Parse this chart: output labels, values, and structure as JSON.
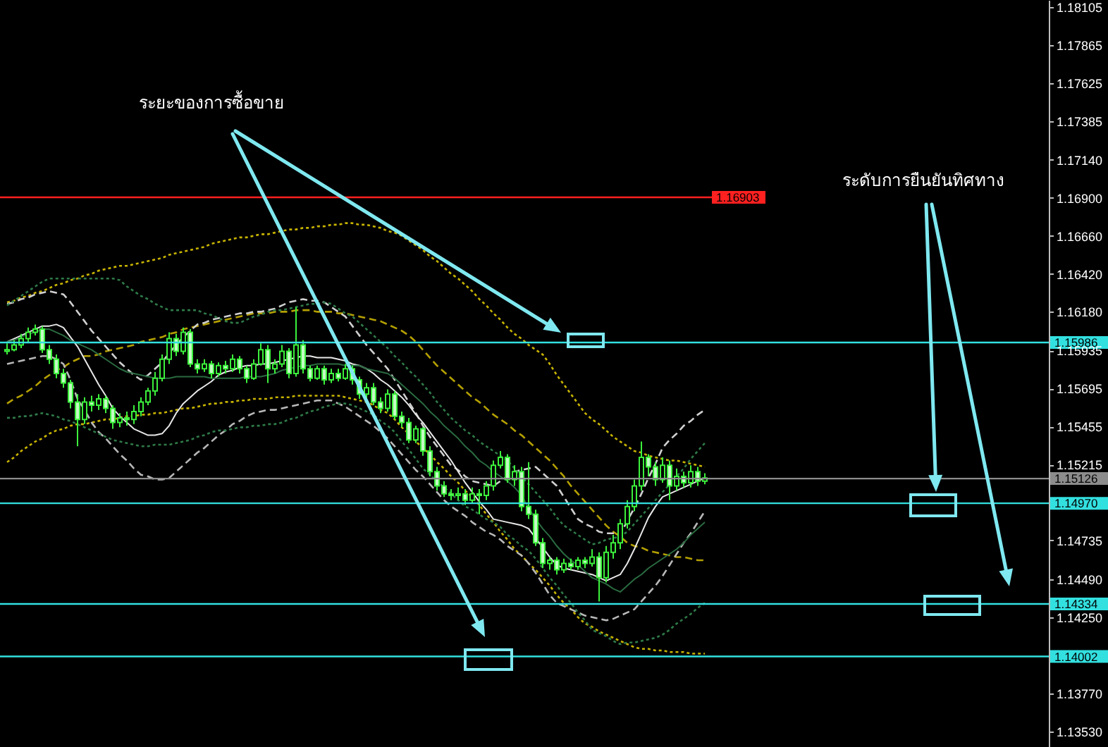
{
  "chart_data": {
    "type": "candlestick",
    "annotations": [
      "ระยะของการซื้อขาย",
      "ระดับการยืนยันทิศทาง"
    ],
    "categories": [
      null,
      null,
      null,
      null,
      null,
      null,
      null,
      null,
      null,
      null,
      null,
      null,
      null,
      null,
      null,
      null,
      null,
      null,
      null,
      null,
      null,
      null,
      null,
      null,
      null,
      null,
      null,
      null,
      null,
      null,
      null,
      null,
      null,
      null,
      null,
      null,
      null,
      null,
      null,
      null,
      null,
      null,
      null,
      null,
      null,
      null,
      null,
      null,
      null,
      null,
      null,
      null,
      null,
      null,
      null,
      null,
      null,
      null,
      null,
      null,
      null,
      null,
      null,
      null,
      null,
      null,
      null,
      null,
      null,
      null,
      null,
      null,
      null,
      null,
      null,
      null,
      null,
      null,
      null,
      null,
      null,
      null,
      null,
      null,
      null,
      null,
      null,
      null,
      null,
      null,
      null,
      null,
      null,
      null,
      null,
      null,
      null,
      null,
      null,
      null
    ],
    "ylim": [
      1.1343,
      1.1815
    ],
    "yticks": [
      1.18105,
      1.17865,
      1.17625,
      1.17385,
      {
        "value": 1.1714,
        "label": "1.17140"
      },
      {
        "value": 1.169,
        "label": "1.16900"
      },
      {
        "value": 1.1666,
        "label": "1.16660"
      },
      {
        "value": 1.1642,
        "label": "1.16420"
      },
      {
        "value": 1.1618,
        "label": "1.16180"
      },
      1.15935,
      1.15695,
      1.15455,
      1.15215,
      1.14735,
      {
        "value": 1.1449,
        "label": "1.14490"
      },
      {
        "value": 1.1425,
        "label": "1.14250"
      },
      {
        "value": 1.1377,
        "label": "1.13770"
      },
      {
        "value": 1.1353,
        "label": "1.13530"
      }
    ],
    "tick_labels": "y",
    "ref_lines": [
      {
        "axis": "y",
        "value": 1.16903,
        "label": "1.16903",
        "color": "#ff2020"
      },
      {
        "axis": "y",
        "value": 1.15986,
        "label": "1.15986",
        "color": "#33e0e0"
      },
      {
        "axis": "y",
        "value": 1.15126,
        "label": "1.15126",
        "color": "#8c8c8c"
      },
      {
        "axis": "y",
        "value": 1.1497,
        "label": "1.14970",
        "color": "#33e0e0"
      },
      {
        "axis": "y",
        "value": 1.14334,
        "label": "1.14334",
        "color": "#33e0e0"
      },
      {
        "axis": "y",
        "value": 1.14002,
        "label": "1.14002",
        "color": "#33e0e0"
      }
    ],
    "series": [
      {
        "type": "line",
        "color": "#c8b400",
        "line_style": "dotted",
        "values": [
          1.1624,
          1.1625,
          1.1627,
          1.1628,
          1.163,
          1.1631,
          1.1633,
          1.1635,
          1.1636,
          1.1638,
          1.1639,
          1.1641,
          1.1642,
          1.1644,
          1.1645,
          1.1646,
          1.1647,
          1.1647,
          1.1648,
          1.1649,
          1.165,
          1.1651,
          1.1652,
          1.1654,
          1.1655,
          1.1656,
          1.1657,
          1.1658,
          1.1659,
          1.1661,
          1.1662,
          1.1663,
          1.1664,
          1.1665,
          1.1665,
          1.1666,
          1.1667,
          1.1667,
          1.1668,
          1.1669,
          1.167,
          1.167,
          1.1671,
          1.1671,
          1.1672,
          1.1672,
          1.1673,
          1.1673,
          1.1674,
          1.1674,
          1.1673,
          1.1673,
          1.1672,
          1.1671,
          1.1669,
          1.1668,
          1.1666,
          1.1663,
          1.166,
          1.1657,
          1.1653,
          1.165,
          1.1646,
          1.1642,
          1.1639,
          1.1635,
          1.1631,
          1.1626,
          1.1622,
          1.1617,
          1.1613,
          1.1608,
          1.1604,
          1.1601,
          1.1597,
          1.1594,
          1.1591,
          1.1585,
          1.1578,
          1.1572,
          1.1566,
          1.156,
          1.1554,
          1.155,
          1.1547,
          1.1543,
          1.1539,
          1.1536,
          1.1533,
          1.153,
          1.1529,
          1.1527,
          1.1526,
          1.1525,
          1.1524,
          1.1524,
          1.1523,
          1.1522,
          1.1521,
          1.152
        ]
      },
      {
        "type": "line",
        "color": "#c8b400",
        "line_style": "dotted",
        "values": [
          1.1523,
          1.1526,
          1.153,
          1.1533,
          1.1536,
          1.1538,
          1.1541,
          1.1543,
          1.1544,
          1.1546,
          1.1547,
          1.1547,
          1.1548,
          1.1549,
          1.155,
          1.155,
          1.1551,
          1.1552,
          1.1552,
          1.1553,
          1.1553,
          1.1554,
          1.1554,
          1.1555,
          1.1556,
          1.1557,
          1.1557,
          1.1558,
          1.1559,
          1.156,
          1.156,
          1.1561,
          1.1561,
          1.1562,
          1.1562,
          1.1563,
          1.1563,
          1.1563,
          1.1564,
          1.1564,
          1.1564,
          1.1565,
          1.1565,
          1.1565,
          1.1565,
          1.1565,
          1.1565,
          1.1565,
          1.1564,
          1.1563,
          1.1562,
          1.1561,
          1.1559,
          1.1556,
          1.1554,
          1.155,
          1.1545,
          1.1541,
          1.1536,
          1.1532,
          1.1528,
          1.1523,
          1.1519,
          1.1514,
          1.151,
          1.1505,
          1.1501,
          1.1496,
          1.149,
          1.1485,
          1.1479,
          1.1474,
          1.1468,
          1.1464,
          1.1459,
          1.1455,
          1.145,
          1.1445,
          1.1439,
          1.1434,
          1.143,
          1.1425,
          1.1421,
          1.1419,
          1.1416,
          1.1414,
          1.1412,
          1.141,
          1.1408,
          1.1406,
          1.1405,
          1.1405,
          1.1404,
          1.1404,
          1.1403,
          1.1403,
          1.1403,
          1.1402,
          1.1402,
          1.1402
        ]
      },
      {
        "type": "line",
        "color": "#b4a000",
        "line_style": "dashed",
        "values": [
          1.156,
          1.1563,
          1.1565,
          1.1568,
          1.1571,
          1.1575,
          1.1578,
          1.1581,
          1.1583,
          1.1586,
          1.1588,
          1.159,
          1.159,
          1.1591,
          1.1593,
          1.1594,
          1.1595,
          1.1596,
          1.1597,
          1.1599,
          1.16,
          1.1601,
          1.1602,
          1.1604,
          1.1605,
          1.1607,
          1.1608,
          1.1609,
          1.161,
          1.1611,
          1.1612,
          1.1613,
          1.1614,
          1.1615,
          1.1616,
          1.1617,
          1.1617,
          1.1617,
          1.1618,
          1.1618,
          1.1618,
          1.1619,
          1.1619,
          1.1619,
          1.1618,
          1.1618,
          1.1618,
          1.1617,
          1.1617,
          1.1616,
          1.1615,
          1.1614,
          1.1613,
          1.1612,
          1.161,
          1.1608,
          1.1606,
          1.1603,
          1.1599,
          1.1594,
          1.1589,
          1.1584,
          1.158,
          1.1576,
          1.1572,
          1.1568,
          1.1564,
          1.1561,
          1.1557,
          1.1553,
          1.155,
          1.1547,
          1.1543,
          1.154,
          1.1536,
          1.1532,
          1.1528,
          1.1524,
          1.1519,
          1.1514,
          1.1508,
          1.1503,
          1.1498,
          1.1493,
          1.1488,
          1.1483,
          1.1479,
          1.1476,
          1.1472,
          1.147,
          1.1469,
          1.1467,
          1.1466,
          1.1465,
          1.1464,
          1.1463,
          1.1463,
          1.1462,
          1.1461,
          1.1461
        ]
      },
      {
        "type": "line",
        "color": "#d0d0d0",
        "line_style": "dashed",
        "values": [
          1.1623,
          1.1624,
          1.1626,
          1.1627,
          1.1629,
          1.163,
          1.1631,
          1.163,
          1.1629,
          1.1624,
          1.1618,
          1.1612,
          1.1606,
          1.1601,
          1.1596,
          1.1591,
          1.1586,
          1.1582,
          1.1578,
          1.1575,
          1.1578,
          1.1582,
          1.1586,
          1.1592,
          1.1597,
          1.1602,
          1.1606,
          1.161,
          1.1611,
          1.1613,
          1.1614,
          1.1615,
          1.1616,
          1.1617,
          1.1617,
          1.1618,
          1.1618,
          1.1619,
          1.162,
          1.1622,
          1.1624,
          1.1625,
          1.1626,
          1.1625,
          1.1625,
          1.1624,
          1.1621,
          1.1618,
          1.1615,
          1.1609,
          1.1603,
          1.1597,
          1.1592,
          1.1587,
          1.1582,
          1.1575,
          1.1568,
          1.1561,
          1.1554,
          1.1546,
          1.1539,
          1.1533,
          1.1527,
          1.1521,
          1.1518,
          1.1514,
          1.1511,
          1.151,
          1.1509,
          1.1508,
          1.1511,
          1.1514,
          1.1517,
          1.1518,
          1.1519,
          1.152,
          1.1516,
          1.1512,
          1.1508,
          1.1501,
          1.1494,
          1.1487,
          1.1484,
          1.1482,
          1.1479,
          1.1478,
          1.1478,
          1.1477,
          1.1486,
          1.1494,
          1.1503,
          1.1513,
          1.1522,
          1.1532,
          1.1537,
          1.1541,
          1.1546,
          1.1549,
          1.1553,
          1.1556
        ]
      },
      {
        "type": "line",
        "color": "#e8e8e8",
        "line_style": "solid",
        "values": [
          1.1599,
          1.1601,
          1.1603,
          1.1605,
          1.1607,
          1.1609,
          1.1609,
          1.161,
          1.1608,
          1.1602,
          1.1596,
          1.1588,
          1.158,
          1.1572,
          1.1565,
          1.1557,
          1.1552,
          1.1548,
          1.1544,
          1.1542,
          1.154,
          1.154,
          1.1541,
          1.1546,
          1.1554,
          1.156,
          1.1564,
          1.1568,
          1.1571,
          1.1574,
          1.1578,
          1.158,
          1.1581,
          1.1583,
          1.1584,
          1.1584,
          1.1585,
          1.1585,
          1.1586,
          1.1587,
          1.1588,
          1.1589,
          1.159,
          1.159,
          1.1589,
          1.1589,
          1.1589,
          1.1588,
          1.1587,
          1.1585,
          1.1584,
          1.1582,
          1.1579,
          1.1575,
          1.1572,
          1.1568,
          1.1564,
          1.1559,
          1.1553,
          1.1548,
          1.1542,
          1.1536,
          1.153,
          1.1524,
          1.1517,
          1.151,
          1.1504,
          1.1498,
          1.1493,
          1.1487,
          1.1486,
          1.1485,
          1.1484,
          1.1483,
          1.1481,
          1.1475,
          1.1469,
          1.1463,
          1.1458,
          1.1456,
          1.1455,
          1.1454,
          1.1453,
          1.1452,
          1.145,
          1.1448,
          1.145,
          1.1452,
          1.1459,
          1.1468,
          1.1478,
          1.1488,
          1.1495,
          1.1501,
          1.1503,
          1.1505,
          1.1507,
          1.1509,
          1.1511,
          1.1513
        ]
      },
      {
        "type": "line",
        "color": "#b8b8b8",
        "line_style": "dashed",
        "values": [
          1.1585,
          1.1586,
          1.1587,
          1.1588,
          1.1589,
          1.159,
          1.159,
          1.1588,
          1.1585,
          1.1575,
          1.1563,
          1.1556,
          1.1548,
          1.1542,
          1.1538,
          1.1533,
          1.1528,
          1.1524,
          1.1519,
          1.1515,
          1.1514,
          1.1512,
          1.1512,
          1.1513,
          1.1517,
          1.1521,
          1.1525,
          1.1529,
          1.1532,
          1.1536,
          1.154,
          1.1543,
          1.1547,
          1.1549,
          1.1552,
          1.1554,
          1.1555,
          1.1556,
          1.1556,
          1.1557,
          1.1558,
          1.1559,
          1.156,
          1.1561,
          1.1562,
          1.1562,
          1.1562,
          1.156,
          1.1558,
          1.1555,
          1.1552,
          1.1549,
          1.1546,
          1.1542,
          1.1538,
          1.1533,
          1.1528,
          1.1523,
          1.1518,
          1.1514,
          1.1509,
          1.1504,
          1.1499,
          1.1495,
          1.1492,
          1.1489,
          1.1485,
          1.1482,
          1.1479,
          1.1477,
          1.1474,
          1.147,
          1.1467,
          1.1464,
          1.1459,
          1.1453,
          1.1446,
          1.1439,
          1.1434,
          1.1432,
          1.143,
          1.1428,
          1.1426,
          1.1425,
          1.1424,
          1.1423,
          1.1424,
          1.1426,
          1.1428,
          1.143,
          1.1435,
          1.144,
          1.1445,
          1.1451,
          1.1458,
          1.1465,
          1.1472,
          1.1478,
          1.1485,
          1.1492
        ]
      },
      {
        "type": "line",
        "color": "#2f7a48",
        "line_style": "dotted",
        "values": [
          1.1622,
          1.1625,
          1.1628,
          1.1631,
          1.1634,
          1.1637,
          1.1639,
          1.1639,
          1.1639,
          1.1639,
          1.1639,
          1.1639,
          1.1639,
          1.1639,
          1.1639,
          1.1639,
          1.1638,
          1.1634,
          1.1631,
          1.1628,
          1.1626,
          1.1623,
          1.1621,
          1.1619,
          1.1619,
          1.1619,
          1.1619,
          1.1619,
          1.1617,
          1.1616,
          1.1614,
          1.1612,
          1.1611,
          1.1611,
          1.1613,
          1.1615,
          1.1616,
          1.1618,
          1.1619,
          1.1619,
          1.162,
          1.1621,
          1.1622,
          1.1623,
          1.1623,
          1.1624,
          1.1623,
          1.162,
          1.1617,
          1.1615,
          1.1611,
          1.1607,
          1.1603,
          1.1599,
          1.1595,
          1.159,
          1.1586,
          1.1581,
          1.1577,
          1.1572,
          1.1567,
          1.1561,
          1.1556,
          1.1551,
          1.1547,
          1.1543,
          1.154,
          1.1536,
          1.1533,
          1.153,
          1.1527,
          1.1524,
          1.1519,
          1.1514,
          1.1509,
          1.1504,
          1.1499,
          1.1494,
          1.1488,
          1.1483,
          1.148,
          1.1477,
          1.1474,
          1.1471,
          1.1472,
          1.1474,
          1.1475,
          1.1476,
          1.1479,
          1.1484,
          1.1489,
          1.1494,
          1.1499,
          1.1504,
          1.1509,
          1.1514,
          1.1519,
          1.1525,
          1.153,
          1.1535
        ]
      },
      {
        "type": "line",
        "color": "#2a6a40",
        "line_style": "solid",
        "values": [
          1.1599,
          1.16,
          1.1602,
          1.1604,
          1.1605,
          1.1607,
          1.1607,
          1.1605,
          1.1603,
          1.16,
          1.1598,
          1.1596,
          1.1594,
          1.1591,
          1.1588,
          1.1585,
          1.1582,
          1.158,
          1.1579,
          1.1578,
          1.1577,
          1.1576,
          1.1576,
          1.1576,
          1.1577,
          1.1577,
          1.1577,
          1.1577,
          1.1577,
          1.1576,
          1.1576,
          1.1576,
          1.1576,
          1.1576,
          1.1577,
          1.1577,
          1.1577,
          1.1578,
          1.1579,
          1.1581,
          1.1582,
          1.1583,
          1.1584,
          1.1584,
          1.1585,
          1.1585,
          1.1585,
          1.1585,
          1.1584,
          1.1584,
          1.1584,
          1.1582,
          1.1581,
          1.158,
          1.1579,
          1.1576,
          1.1572,
          1.1568,
          1.1564,
          1.156,
          1.1555,
          1.1551,
          1.1546,
          1.1542,
          1.1538,
          1.1533,
          1.1529,
          1.1524,
          1.1521,
          1.1517,
          1.1514,
          1.1511,
          1.1507,
          1.1502,
          1.1494,
          1.1487,
          1.1481,
          1.1476,
          1.147,
          1.1465,
          1.1461,
          1.1458,
          1.1454,
          1.145,
          1.1448,
          1.1446,
          1.1443,
          1.1441,
          1.1445,
          1.1449,
          1.1452,
          1.1456,
          1.1459,
          1.1462,
          1.1465,
          1.1468,
          1.1472,
          1.1477,
          1.1481,
          1.1485
        ]
      },
      {
        "type": "line",
        "color": "#2f7a48",
        "line_style": "dotted",
        "values": [
          1.1551,
          1.1551,
          1.1552,
          1.1552,
          1.1553,
          1.1554,
          1.1553,
          1.1552,
          1.155,
          1.1549,
          1.1547,
          1.1545,
          1.1543,
          1.1541,
          1.1539,
          1.1537,
          1.1536,
          1.1535,
          1.1534,
          1.1533,
          1.1533,
          1.1534,
          1.1534,
          1.1534,
          1.1535,
          1.1536,
          1.1537,
          1.1539,
          1.154,
          1.1542,
          1.1543,
          1.1543,
          1.1544,
          1.1545,
          1.1545,
          1.1546,
          1.1546,
          1.1547,
          1.1547,
          1.1548,
          1.155,
          1.1551,
          1.1553,
          1.1555,
          1.1556,
          1.1558,
          1.1559,
          1.156,
          1.156,
          1.1559,
          1.1557,
          1.1555,
          1.1553,
          1.1549,
          1.1546,
          1.1542,
          1.1536,
          1.1531,
          1.1525,
          1.1519,
          1.1515,
          1.1511,
          1.1507,
          1.1503,
          1.1499,
          1.1495,
          1.1493,
          1.149,
          1.1487,
          1.1485,
          1.1482,
          1.1477,
          1.1474,
          1.147,
          1.1467,
          1.1462,
          1.1456,
          1.145,
          1.1445,
          1.1439,
          1.1434,
          1.1428,
          1.1423,
          1.1417,
          1.1415,
          1.1413,
          1.141,
          1.1408,
          1.1409,
          1.1409,
          1.141,
          1.1411,
          1.1412,
          1.1414,
          1.1417,
          1.1421,
          1.1424,
          1.1427,
          1.1431,
          1.1434
        ]
      },
      {
        "type": "candlestick",
        "color": "#3cf03c",
        "ohlc": [
          [
            1.1593,
            1.1598,
            1.1591,
            1.1594
          ],
          [
            1.1594,
            1.16,
            1.1593,
            1.1597
          ],
          [
            1.1597,
            1.1604,
            1.1595,
            1.1601
          ],
          [
            1.1601,
            1.1608,
            1.1599,
            1.1605
          ],
          [
            1.1605,
            1.161,
            1.1603,
            1.1607
          ],
          [
            1.1607,
            1.1609,
            1.1592,
            1.1594
          ],
          [
            1.1594,
            1.1597,
            1.1585,
            1.1588
          ],
          [
            1.1588,
            1.1591,
            1.1576,
            1.1579
          ],
          [
            1.1579,
            1.1582,
            1.157,
            1.1573
          ],
          [
            1.1573,
            1.1575,
            1.1557,
            1.1561
          ],
          [
            1.1561,
            1.1566,
            1.1533,
            1.155
          ],
          [
            1.155,
            1.1564,
            1.1547,
            1.1561
          ],
          [
            1.1561,
            1.1565,
            1.1555,
            1.1559
          ],
          [
            1.1559,
            1.1566,
            1.1556,
            1.1563
          ],
          [
            1.1563,
            1.1565,
            1.1554,
            1.1557
          ],
          [
            1.1557,
            1.1559,
            1.1544,
            1.1548
          ],
          [
            1.1548,
            1.1554,
            1.1545,
            1.1551
          ],
          [
            1.1551,
            1.1555,
            1.1546,
            1.155
          ],
          [
            1.155,
            1.1559,
            1.1547,
            1.1555
          ],
          [
            1.1555,
            1.1564,
            1.1552,
            1.1561
          ],
          [
            1.1561,
            1.157,
            1.1559,
            1.1568
          ],
          [
            1.1568,
            1.158,
            1.1565,
            1.1576
          ],
          [
            1.1576,
            1.1591,
            1.1574,
            1.1588
          ],
          [
            1.1588,
            1.1605,
            1.1585,
            1.1601
          ],
          [
            1.1601,
            1.1604,
            1.159,
            1.1593
          ],
          [
            1.1593,
            1.1608,
            1.1591,
            1.1605
          ],
          [
            1.1605,
            1.1607,
            1.1583,
            1.1585
          ],
          [
            1.1585,
            1.1588,
            1.1579,
            1.1582
          ],
          [
            1.1582,
            1.1588,
            1.158,
            1.1585
          ],
          [
            1.1585,
            1.1587,
            1.1576,
            1.1579
          ],
          [
            1.1579,
            1.1586,
            1.1577,
            1.1584
          ],
          [
            1.1584,
            1.1587,
            1.1579,
            1.1582
          ],
          [
            1.1582,
            1.1591,
            1.158,
            1.1588
          ],
          [
            1.1588,
            1.159,
            1.1579,
            1.1582
          ],
          [
            1.1582,
            1.1584,
            1.1573,
            1.1576
          ],
          [
            1.1576,
            1.1588,
            1.1575,
            1.1585
          ],
          [
            1.1585,
            1.1598,
            1.1584,
            1.1594
          ],
          [
            1.1594,
            1.1597,
            1.1573,
            1.1582
          ],
          [
            1.1582,
            1.1588,
            1.1579,
            1.1585
          ],
          [
            1.1585,
            1.1597,
            1.1583,
            1.1593
          ],
          [
            1.1593,
            1.1595,
            1.1576,
            1.1579
          ],
          [
            1.1579,
            1.1621,
            1.1577,
            1.1597
          ],
          [
            1.1597,
            1.16,
            1.1579,
            1.1582
          ],
          [
            1.1582,
            1.1584,
            1.1574,
            1.1576
          ],
          [
            1.1576,
            1.1584,
            1.1575,
            1.1582
          ],
          [
            1.1582,
            1.1584,
            1.1572,
            1.1575
          ],
          [
            1.1575,
            1.1582,
            1.1573,
            1.1579
          ],
          [
            1.1579,
            1.1582,
            1.1574,
            1.1576
          ],
          [
            1.1576,
            1.1585,
            1.1575,
            1.1582
          ],
          [
            1.1582,
            1.1584,
            1.1572,
            1.1575
          ],
          [
            1.1575,
            1.1577,
            1.1563,
            1.1566
          ],
          [
            1.1566,
            1.1573,
            1.1563,
            1.157
          ],
          [
            1.157,
            1.1573,
            1.1559,
            1.1561
          ],
          [
            1.1561,
            1.1564,
            1.1554,
            1.1557
          ],
          [
            1.1557,
            1.1569,
            1.1555,
            1.1566
          ],
          [
            1.1566,
            1.1568,
            1.155,
            1.1552
          ],
          [
            1.1552,
            1.1555,
            1.1545,
            1.1548
          ],
          [
            1.1548,
            1.1551,
            1.1535,
            1.1537
          ],
          [
            1.1537,
            1.1546,
            1.1535,
            1.1544
          ],
          [
            1.1544,
            1.1545,
            1.1527,
            1.153
          ],
          [
            1.153,
            1.1533,
            1.1514,
            1.1517
          ],
          [
            1.1517,
            1.152,
            1.1505,
            1.1508
          ],
          [
            1.1508,
            1.1511,
            1.1501,
            1.1503
          ],
          [
            1.1503,
            1.1506,
            1.1499,
            1.1502
          ],
          [
            1.1502,
            1.1507,
            1.1499,
            1.1503
          ],
          [
            1.1503,
            1.1506,
            1.1496,
            1.1499
          ],
          [
            1.1499,
            1.1507,
            1.1497,
            1.1503
          ],
          [
            1.1503,
            1.1506,
            1.149,
            1.1502
          ],
          [
            1.1502,
            1.1511,
            1.1499,
            1.1508
          ],
          [
            1.1508,
            1.1524,
            1.1505,
            1.1521
          ],
          [
            1.1521,
            1.153,
            1.1519,
            1.1526
          ],
          [
            1.1526,
            1.1528,
            1.151,
            1.1512
          ],
          [
            1.1512,
            1.1521,
            1.1508,
            1.1517
          ],
          [
            1.1517,
            1.152,
            1.1492,
            1.1495
          ],
          [
            1.1495,
            1.1523,
            1.1487,
            1.149
          ],
          [
            1.149,
            1.1493,
            1.147,
            1.1472
          ],
          [
            1.1472,
            1.1475,
            1.1456,
            1.1459
          ],
          [
            1.1459,
            1.1463,
            1.1455,
            1.1461
          ],
          [
            1.1461,
            1.1463,
            1.1452,
            1.1455
          ],
          [
            1.1455,
            1.1462,
            1.1453,
            1.1459
          ],
          [
            1.1459,
            1.1462,
            1.1455,
            1.1457
          ],
          [
            1.1457,
            1.1463,
            1.1455,
            1.1461
          ],
          [
            1.1461,
            1.1463,
            1.1456,
            1.1459
          ],
          [
            1.1459,
            1.1468,
            1.1457,
            1.1463
          ],
          [
            1.1463,
            1.1466,
            1.1435,
            1.145
          ],
          [
            1.145,
            1.147,
            1.1447,
            1.1466
          ],
          [
            1.1466,
            1.1477,
            1.1462,
            1.1472
          ],
          [
            1.1472,
            1.1487,
            1.1468,
            1.1484
          ],
          [
            1.1484,
            1.1499,
            1.1481,
            1.1495
          ],
          [
            1.1495,
            1.1512,
            1.1492,
            1.1508
          ],
          [
            1.1508,
            1.1536,
            1.1505,
            1.1526
          ],
          [
            1.1526,
            1.1528,
            1.1514,
            1.152
          ],
          [
            1.152,
            1.1523,
            1.1508,
            1.1512
          ],
          [
            1.1512,
            1.1526,
            1.151,
            1.1521
          ],
          [
            1.1521,
            1.1524,
            1.1499,
            1.1508
          ],
          [
            1.1508,
            1.1519,
            1.1505,
            1.1514
          ],
          [
            1.1514,
            1.1517,
            1.1507,
            1.151
          ],
          [
            1.151,
            1.1521,
            1.1507,
            1.1517
          ],
          [
            1.1517,
            1.152,
            1.1508,
            1.1511
          ],
          [
            1.1511,
            1.1516,
            1.1509,
            1.1513
          ]
        ]
      }
    ]
  }
}
